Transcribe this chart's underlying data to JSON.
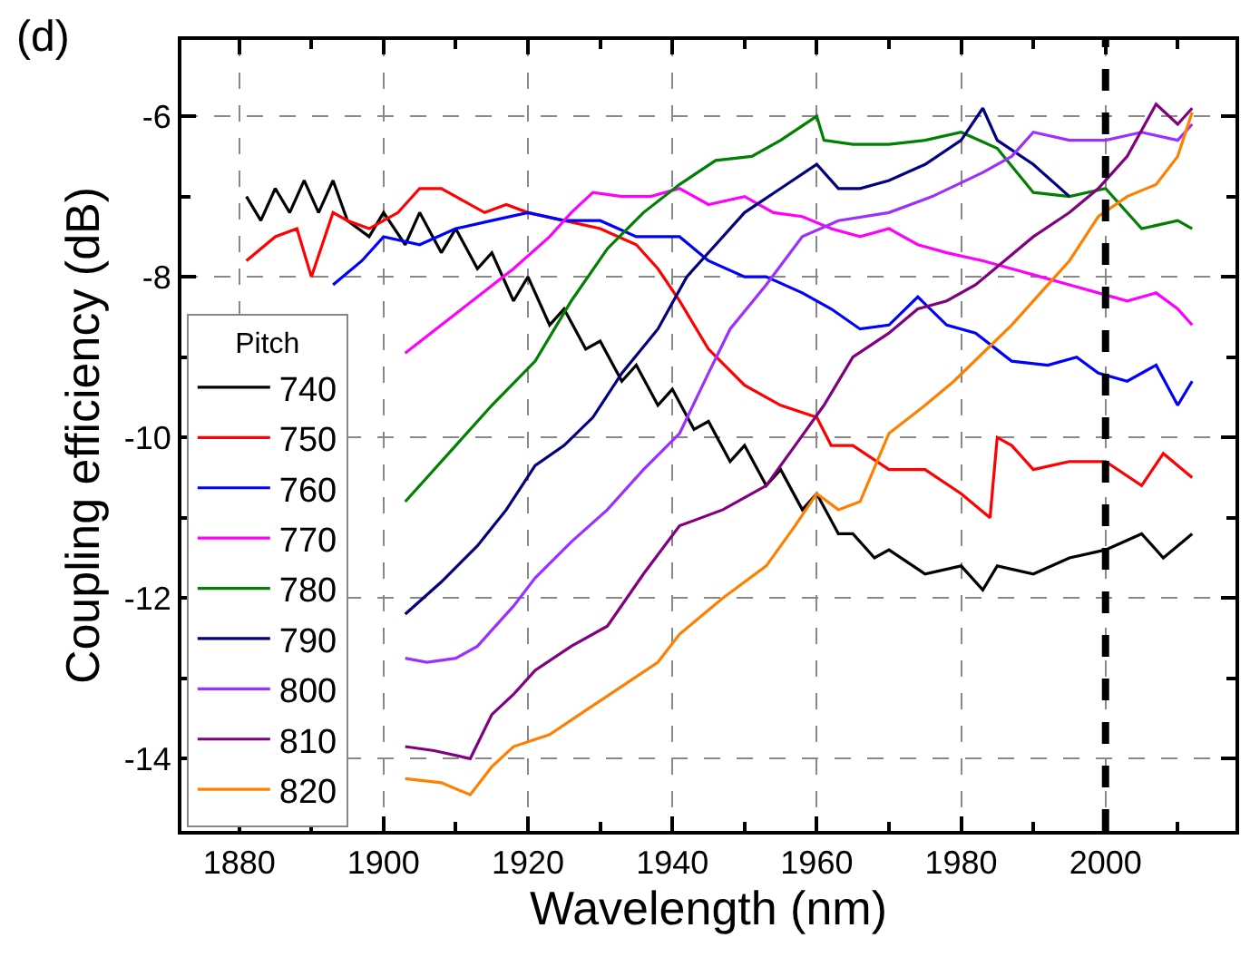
{
  "chart_data": {
    "type": "line",
    "xlabel": "Wavelength (nm)",
    "ylabel": "Coupling efficiency (dB)",
    "legend_title": "Pitch",
    "legend": "bottom left",
    "grid": true,
    "line_style": "solid",
    "marker": "none",
    "annotations": [
      "(d)"
    ],
    "xlim": [
      1872,
      2018
    ],
    "ylim": [
      -14.9,
      -5.05
    ],
    "xticks": [
      1880,
      {
        "value": 1890,
        "label": null
      },
      1900,
      {
        "value": 1910,
        "label": null
      },
      1920,
      {
        "value": 1930,
        "label": null
      },
      1940,
      {
        "value": 1950,
        "label": null
      },
      1960,
      {
        "value": 1970,
        "label": null
      },
      1980,
      {
        "value": 1990,
        "label": null
      },
      2000,
      {
        "value": 2010,
        "label": null
      }
    ],
    "yticks": [
      -14,
      {
        "value": -13,
        "label": null
      },
      -12,
      {
        "value": -11,
        "label": null
      },
      -10,
      {
        "value": -9,
        "label": null
      },
      -8,
      {
        "value": -7,
        "label": null
      },
      -6
    ],
    "ref_lines": [
      {
        "axis": "x",
        "value": 2000,
        "color": "#000000",
        "line_style": "dashed"
      }
    ],
    "series": [
      {
        "name": "740",
        "color": "#000000",
        "x": [
          1881,
          1883,
          1885,
          1887,
          1889,
          1891,
          1893,
          1895,
          1898,
          1900,
          1903,
          1905,
          1908,
          1910,
          1913,
          1915,
          1918,
          1920,
          1923,
          1925,
          1928,
          1930,
          1933,
          1935,
          1938,
          1940,
          1943,
          1945,
          1948,
          1950,
          1953,
          1955,
          1958,
          1960,
          1963,
          1965,
          1968,
          1970,
          1975,
          1980,
          1983,
          1985,
          1990,
          1995,
          2000,
          2005,
          2008,
          2012
        ],
        "values": [
          -7.0,
          -7.3,
          -6.9,
          -7.2,
          -6.8,
          -7.2,
          -6.8,
          -7.3,
          -7.5,
          -7.2,
          -7.6,
          -7.2,
          -7.7,
          -7.4,
          -7.9,
          -7.7,
          -8.3,
          -8.0,
          -8.6,
          -8.4,
          -8.9,
          -8.8,
          -9.3,
          -9.1,
          -9.6,
          -9.4,
          -9.9,
          -9.8,
          -10.3,
          -10.1,
          -10.6,
          -10.4,
          -10.9,
          -10.7,
          -11.2,
          -11.2,
          -11.5,
          -11.4,
          -11.7,
          -11.6,
          -11.9,
          -11.6,
          -11.7,
          -11.5,
          -11.4,
          -11.2,
          -11.5,
          -11.2
        ]
      },
      {
        "name": "750",
        "color": "#ff0000",
        "x": [
          1881,
          1885,
          1888,
          1890,
          1893,
          1895,
          1898,
          1902,
          1905,
          1908,
          1910,
          1914,
          1917,
          1920,
          1925,
          1930,
          1935,
          1938,
          1941,
          1945,
          1950,
          1955,
          1960,
          1962,
          1965,
          1970,
          1975,
          1980,
          1984,
          1985,
          1987,
          1990,
          1995,
          2000,
          2005,
          2008,
          2012
        ],
        "values": [
          -7.8,
          -7.5,
          -7.4,
          -8.0,
          -7.2,
          -7.3,
          -7.4,
          -7.2,
          -6.9,
          -6.9,
          -7.0,
          -7.2,
          -7.1,
          -7.2,
          -7.3,
          -7.4,
          -7.6,
          -7.9,
          -8.3,
          -8.9,
          -9.35,
          -9.6,
          -9.75,
          -10.1,
          -10.1,
          -10.4,
          -10.4,
          -10.7,
          -11.0,
          -10.0,
          -10.1,
          -10.4,
          -10.3,
          -10.3,
          -10.6,
          -10.2,
          -10.5
        ]
      },
      {
        "name": "760",
        "color": "#0000ff",
        "x": [
          1893,
          1897,
          1900,
          1905,
          1910,
          1915,
          1920,
          1925,
          1930,
          1935,
          1941,
          1945,
          1950,
          1953,
          1958,
          1962,
          1966,
          1970,
          1974,
          1978,
          1982,
          1987,
          1992,
          1996,
          1999,
          2003,
          2007,
          2010,
          2012
        ],
        "values": [
          -8.1,
          -7.8,
          -7.5,
          -7.6,
          -7.4,
          -7.3,
          -7.2,
          -7.3,
          -7.3,
          -7.5,
          -7.5,
          -7.8,
          -8.0,
          -8.0,
          -8.2,
          -8.4,
          -8.65,
          -8.6,
          -8.25,
          -8.6,
          -8.7,
          -9.05,
          -9.1,
          -9.0,
          -9.2,
          -9.3,
          -9.1,
          -9.6,
          -9.3
        ]
      },
      {
        "name": "770",
        "color": "#ff00ff",
        "x": [
          1903,
          1908,
          1913,
          1918,
          1923,
          1926,
          1929,
          1933,
          1937,
          1941,
          1945,
          1950,
          1954,
          1958,
          1962,
          1966,
          1970,
          1974,
          1978,
          1983,
          1987,
          1991,
          1995,
          1999,
          2003,
          2007,
          2010,
          2012
        ],
        "values": [
          -8.95,
          -8.6,
          -8.25,
          -7.9,
          -7.5,
          -7.2,
          -6.95,
          -7.0,
          -7.0,
          -6.9,
          -7.1,
          -7.0,
          -7.2,
          -7.25,
          -7.4,
          -7.5,
          -7.4,
          -7.6,
          -7.7,
          -7.8,
          -7.9,
          -8.0,
          -8.1,
          -8.2,
          -8.3,
          -8.2,
          -8.4,
          -8.6
        ]
      },
      {
        "name": "780",
        "color": "#008000",
        "x": [
          1903,
          1906,
          1910,
          1915,
          1921,
          1926,
          1931,
          1936,
          1941,
          1946,
          1951,
          1955,
          1960,
          1961,
          1965,
          1970,
          1975,
          1980,
          1985,
          1990,
          1995,
          2000,
          2005,
          2010,
          2012
        ],
        "values": [
          -10.8,
          -10.5,
          -10.1,
          -9.6,
          -9.05,
          -8.3,
          -7.65,
          -7.2,
          -6.85,
          -6.55,
          -6.5,
          -6.3,
          -6.0,
          -6.3,
          -6.35,
          -6.35,
          -6.3,
          -6.2,
          -6.4,
          -6.95,
          -7.0,
          -6.9,
          -7.4,
          -7.3,
          -7.4
        ]
      },
      {
        "name": "790",
        "color": "#000080",
        "x": [
          1903,
          1908,
          1913,
          1917,
          1921,
          1925,
          1929,
          1933,
          1938,
          1942,
          1946,
          1950,
          1955,
          1960,
          1963,
          1966,
          1970,
          1975,
          1980,
          1983,
          1985,
          1990,
          1995
        ],
        "values": [
          -12.2,
          -11.8,
          -11.35,
          -10.9,
          -10.35,
          -10.1,
          -9.75,
          -9.2,
          -8.65,
          -8.0,
          -7.6,
          -7.2,
          -6.9,
          -6.6,
          -6.9,
          -6.9,
          -6.8,
          -6.6,
          -6.3,
          -5.9,
          -6.3,
          -6.6,
          -7.0
        ]
      },
      {
        "name": "800",
        "color": "#9b30ff",
        "x": [
          1903,
          1906,
          1910,
          1913,
          1915,
          1918,
          1921,
          1926,
          1931,
          1936,
          1941,
          1945,
          1948,
          1953,
          1958,
          1963,
          1970,
          1976,
          1983,
          1987,
          1990,
          1995,
          2000,
          2005,
          2010,
          2012
        ],
        "values": [
          -12.75,
          -12.8,
          -12.75,
          -12.6,
          -12.4,
          -12.1,
          -11.75,
          -11.3,
          -10.9,
          -10.4,
          -9.95,
          -9.2,
          -8.65,
          -8.1,
          -7.5,
          -7.3,
          -7.2,
          -7.0,
          -6.7,
          -6.5,
          -6.2,
          -6.3,
          -6.3,
          -6.2,
          -6.3,
          -6.1
        ]
      },
      {
        "name": "810",
        "color": "#800080",
        "x": [
          1903,
          1907,
          1912,
          1915,
          1918,
          1921,
          1926,
          1931,
          1936,
          1941,
          1947,
          1953,
          1957,
          1961,
          1965,
          1970,
          1974,
          1978,
          1982,
          1986,
          1990,
          1995,
          1999,
          2003,
          2007,
          2010,
          2012
        ],
        "values": [
          -13.85,
          -13.9,
          -14.0,
          -13.45,
          -13.2,
          -12.9,
          -12.6,
          -12.35,
          -11.7,
          -11.1,
          -10.9,
          -10.6,
          -10.1,
          -9.6,
          -9.0,
          -8.7,
          -8.4,
          -8.3,
          -8.1,
          -7.8,
          -7.5,
          -7.2,
          -6.9,
          -6.5,
          -5.85,
          -6.1,
          -5.9
        ]
      },
      {
        "name": "820",
        "color": "#ff8000",
        "x": [
          1903,
          1908,
          1912,
          1915,
          1918,
          1923,
          1928,
          1933,
          1938,
          1941,
          1947,
          1953,
          1957,
          1960,
          1963,
          1966,
          1970,
          1975,
          1979,
          1983,
          1987,
          1991,
          1995,
          1999,
          2003,
          2007,
          2010,
          2012
        ],
        "values": [
          -14.25,
          -14.3,
          -14.45,
          -14.1,
          -13.85,
          -13.7,
          -13.4,
          -13.1,
          -12.8,
          -12.45,
          -12.0,
          -11.6,
          -11.1,
          -10.7,
          -10.9,
          -10.8,
          -9.95,
          -9.6,
          -9.3,
          -8.95,
          -8.6,
          -8.2,
          -7.8,
          -7.25,
          -7.0,
          -6.85,
          -6.5,
          -5.95
        ]
      }
    ]
  }
}
